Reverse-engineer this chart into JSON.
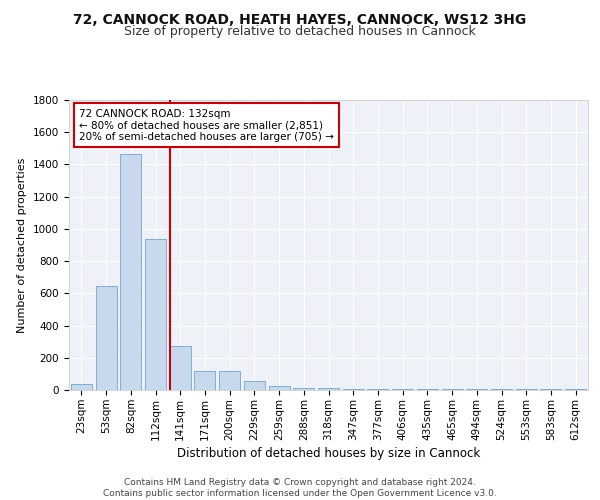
{
  "title1": "72, CANNOCK ROAD, HEATH HAYES, CANNOCK, WS12 3HG",
  "title2": "Size of property relative to detached houses in Cannock",
  "xlabel": "Distribution of detached houses by size in Cannock",
  "ylabel": "Number of detached properties",
  "categories": [
    "23sqm",
    "53sqm",
    "82sqm",
    "112sqm",
    "141sqm",
    "171sqm",
    "200sqm",
    "229sqm",
    "259sqm",
    "288sqm",
    "318sqm",
    "347sqm",
    "377sqm",
    "406sqm",
    "435sqm",
    "465sqm",
    "494sqm",
    "524sqm",
    "553sqm",
    "583sqm",
    "612sqm"
  ],
  "values": [
    38,
    643,
    1463,
    940,
    275,
    120,
    120,
    55,
    25,
    15,
    10,
    8,
    5,
    5,
    5,
    5,
    5,
    5,
    5,
    5,
    5
  ],
  "bar_color": "#c9d9ed",
  "bar_edge_color": "#7bafd4",
  "line_color": "#cc0000",
  "annotation_text": "72 CANNOCK ROAD: 132sqm\n← 80% of detached houses are smaller (2,851)\n20% of semi-detached houses are larger (705) →",
  "annotation_box_color": "#ffffff",
  "annotation_box_edge": "#cc0000",
  "ylim": [
    0,
    1800
  ],
  "yticks": [
    0,
    200,
    400,
    600,
    800,
    1000,
    1200,
    1400,
    1600,
    1800
  ],
  "background_color": "#eef2f8",
  "footer_text": "Contains HM Land Registry data © Crown copyright and database right 2024.\nContains public sector information licensed under the Open Government Licence v3.0.",
  "title1_fontsize": 10,
  "title2_fontsize": 9,
  "xlabel_fontsize": 8.5,
  "ylabel_fontsize": 8,
  "tick_fontsize": 7.5,
  "annotation_fontsize": 7.5,
  "footer_fontsize": 6.5
}
